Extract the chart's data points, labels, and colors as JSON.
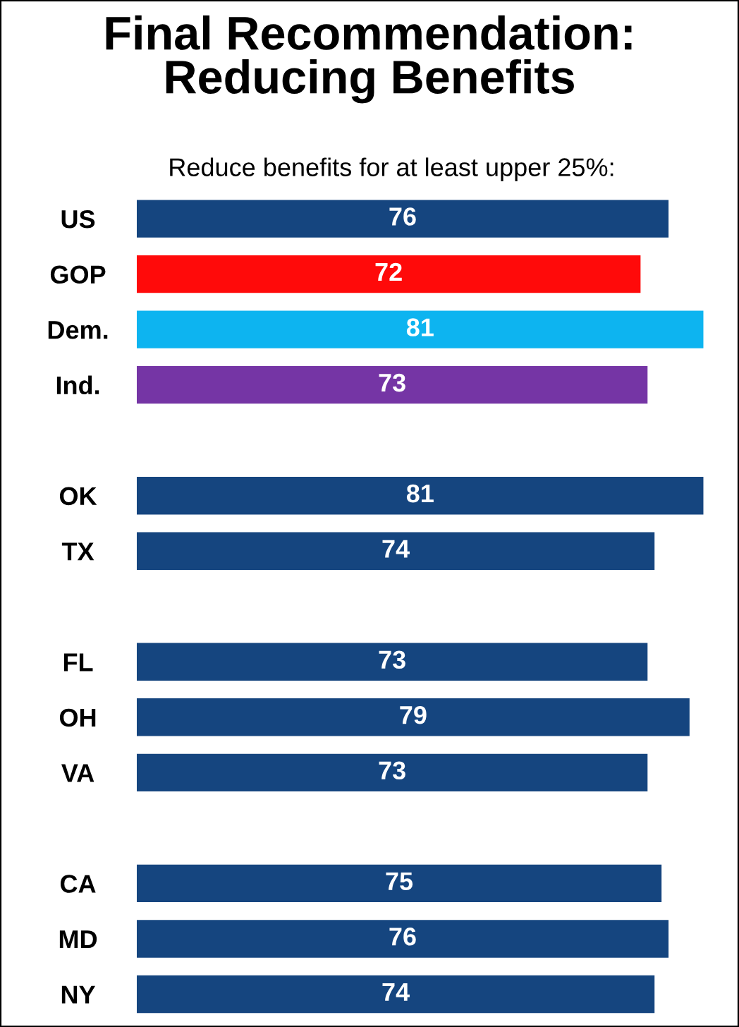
{
  "chart_data": {
    "type": "bar",
    "orientation": "horizontal",
    "title": "Final Recommendation:\nReducing Benefits",
    "subtitle": "Reduce benefits for at least upper 25%:",
    "categories": [
      "US",
      "GOP",
      "Dem.",
      "Ind.",
      null,
      "OK",
      "TX",
      null,
      "FL",
      "OH",
      "VA",
      null,
      "CA",
      "MD",
      "NY"
    ],
    "values": [
      76,
      72,
      81,
      73,
      null,
      81,
      74,
      null,
      73,
      79,
      73,
      null,
      75,
      76,
      74
    ],
    "colors": [
      "#15457f",
      "#ff0a0a",
      "#0db4f0",
      "#7535a5",
      null,
      "#15457f",
      "#15457f",
      null,
      "#15457f",
      "#15457f",
      "#15457f",
      null,
      "#15457f",
      "#15457f",
      "#15457f"
    ],
    "xlim": [
      0,
      81
    ],
    "data_labels": true,
    "grid": false,
    "legend": false,
    "tick_labels": "y"
  }
}
